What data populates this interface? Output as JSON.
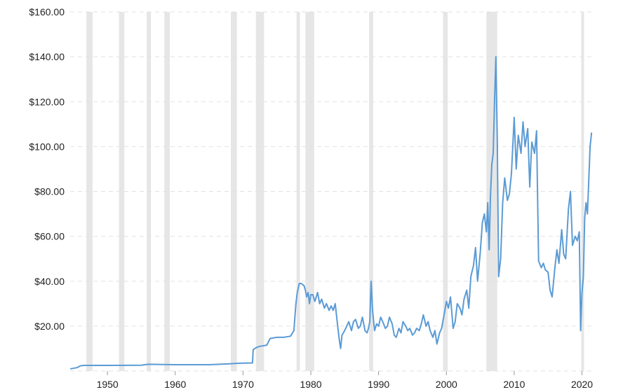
{
  "chart_data": {
    "type": "line",
    "title": "",
    "xlabel": "",
    "ylabel": "",
    "xlim": [
      1944.5,
      2021.6
    ],
    "ylim": [
      0,
      160
    ],
    "grid": true,
    "line_color": "#5b9bd5",
    "recession_color": "#e6e6e6",
    "grid_color": "#e2e2e2",
    "y_ticks": [
      {
        "value": 20,
        "label": "$20.00"
      },
      {
        "value": 40,
        "label": "$40.00"
      },
      {
        "value": 60,
        "label": "$60.00"
      },
      {
        "value": 80,
        "label": "$80.00"
      },
      {
        "value": 100,
        "label": "$100.00"
      },
      {
        "value": 120,
        "label": "$120.00"
      },
      {
        "value": 140,
        "label": "$140.00"
      },
      {
        "value": 160,
        "label": "$160.00"
      }
    ],
    "x_ticks": [
      {
        "value": 1950,
        "label": "1950"
      },
      {
        "value": 1960,
        "label": "1960"
      },
      {
        "value": 1970,
        "label": "1970"
      },
      {
        "value": 1980,
        "label": "1980"
      },
      {
        "value": 1990,
        "label": "1990"
      },
      {
        "value": 2000,
        "label": "2000"
      },
      {
        "value": 2010,
        "label": "2010"
      },
      {
        "value": 2020,
        "label": "2020"
      }
    ],
    "recessions": [
      [
        1946.9,
        1947.8
      ],
      [
        1951.7,
        1952.5
      ],
      [
        1955.8,
        1956.4
      ],
      [
        1958.4,
        1959.2
      ],
      [
        1968.2,
        1969.1
      ],
      [
        1971.9,
        1973.1
      ],
      [
        1977.9,
        1978.4
      ],
      [
        1979.2,
        1980.5
      ],
      [
        1988.6,
        1989.2
      ],
      [
        1999.5,
        2000.2
      ],
      [
        2005.9,
        2007.5
      ],
      [
        2019.9,
        2020.3
      ]
    ],
    "series": [
      {
        "x": [
          1944.6,
          1945.5,
          1946,
          1946.5,
          1950,
          1955,
          1956,
          1960,
          1965,
          1968,
          1969,
          1970,
          1971.4,
          1971.5,
          1972,
          1972.5,
          1973.5,
          1974,
          1975,
          1976,
          1977,
          1977.5,
          1977.8,
          1978,
          1978.3,
          1978.6,
          1979,
          1979.2,
          1979.4,
          1979.6,
          1979.8,
          1980,
          1980.3,
          1980.6,
          1981,
          1981.3,
          1981.6,
          1982,
          1982.3,
          1982.7,
          1983,
          1983.3,
          1983.6,
          1984,
          1984.2,
          1984.4,
          1984.6,
          1984.8,
          1985,
          1985.3,
          1985.6,
          1986,
          1986.3,
          1986.6,
          1987,
          1987.3,
          1987.6,
          1988,
          1988.3,
          1988.5,
          1988.7,
          1988.9,
          1989.1,
          1989.4,
          1989.7,
          1990,
          1990.3,
          1990.6,
          1991,
          1991.3,
          1991.6,
          1992,
          1992.3,
          1992.6,
          1993,
          1993.3,
          1993.6,
          1994,
          1994.3,
          1994.6,
          1995,
          1995.3,
          1995.6,
          1996,
          1996.3,
          1996.6,
          1997,
          1997.3,
          1997.6,
          1998,
          1998.3,
          1998.6,
          1999,
          1999.3,
          1999.6,
          2000,
          2000.3,
          2000.6,
          2001,
          2001.3,
          2001.6,
          2002,
          2002.3,
          2002.6,
          2003,
          2003.3,
          2003.6,
          2004,
          2004.3,
          2004.6,
          2005,
          2005.3,
          2005.6,
          2005.9,
          2006.1,
          2006.3,
          2006.5,
          2006.7,
          2006.9,
          2007.1,
          2007.3,
          2007.5,
          2007.7,
          2008,
          2008.3,
          2008.6,
          2009,
          2009.3,
          2009.6,
          2010,
          2010.3,
          2010.6,
          2011,
          2011.3,
          2011.6,
          2012,
          2012.3,
          2012.6,
          2013,
          2013.3,
          2013.6,
          2014,
          2014.3,
          2014.6,
          2015,
          2015.3,
          2015.6,
          2016,
          2016.3,
          2016.6,
          2017,
          2017.3,
          2017.6,
          2018,
          2018.3,
          2018.6,
          2019,
          2019.3,
          2019.6,
          2019.8,
          2020,
          2020.2,
          2020.4,
          2020.6,
          2020.8,
          2021,
          2021.2,
          2021.4
        ],
        "y": [
          1.0,
          1.5,
          2.3,
          2.5,
          2.5,
          2.6,
          3.0,
          2.8,
          2.8,
          3.2,
          3.4,
          3.5,
          3.6,
          9.5,
          10.5,
          11,
          11.5,
          14.5,
          15,
          15,
          15.5,
          18,
          30,
          35,
          39,
          39,
          38,
          36,
          33,
          35,
          30,
          34,
          34,
          31,
          35,
          30,
          32,
          28,
          30,
          27,
          29,
          27,
          30,
          19,
          14,
          10,
          16,
          17,
          18,
          20,
          22,
          18,
          22,
          23,
          19,
          20,
          24,
          18,
          17,
          19,
          22,
          40,
          27,
          18,
          21,
          20,
          24,
          22,
          19,
          20,
          24,
          21,
          16,
          15,
          19,
          17,
          22,
          20,
          18,
          19,
          16,
          17,
          19,
          18,
          21,
          25,
          20,
          22,
          18,
          15,
          18,
          12,
          17,
          19,
          24,
          31,
          28,
          33,
          19,
          22,
          30,
          28,
          25,
          32,
          36,
          28,
          42,
          47,
          55,
          40,
          53,
          66,
          70,
          62,
          75,
          54,
          78,
          92,
          97,
          120,
          140,
          103,
          42,
          50,
          75,
          86,
          76,
          79,
          88,
          113,
          90,
          105,
          97,
          111,
          100,
          108,
          82,
          102,
          97,
          107,
          49,
          46,
          48,
          45,
          44,
          36,
          33,
          46,
          54,
          48,
          63,
          52,
          50,
          72,
          80,
          56,
          60,
          58,
          62,
          18,
          35,
          42,
          68,
          75,
          70,
          85,
          100,
          106
        ]
      }
    ]
  }
}
